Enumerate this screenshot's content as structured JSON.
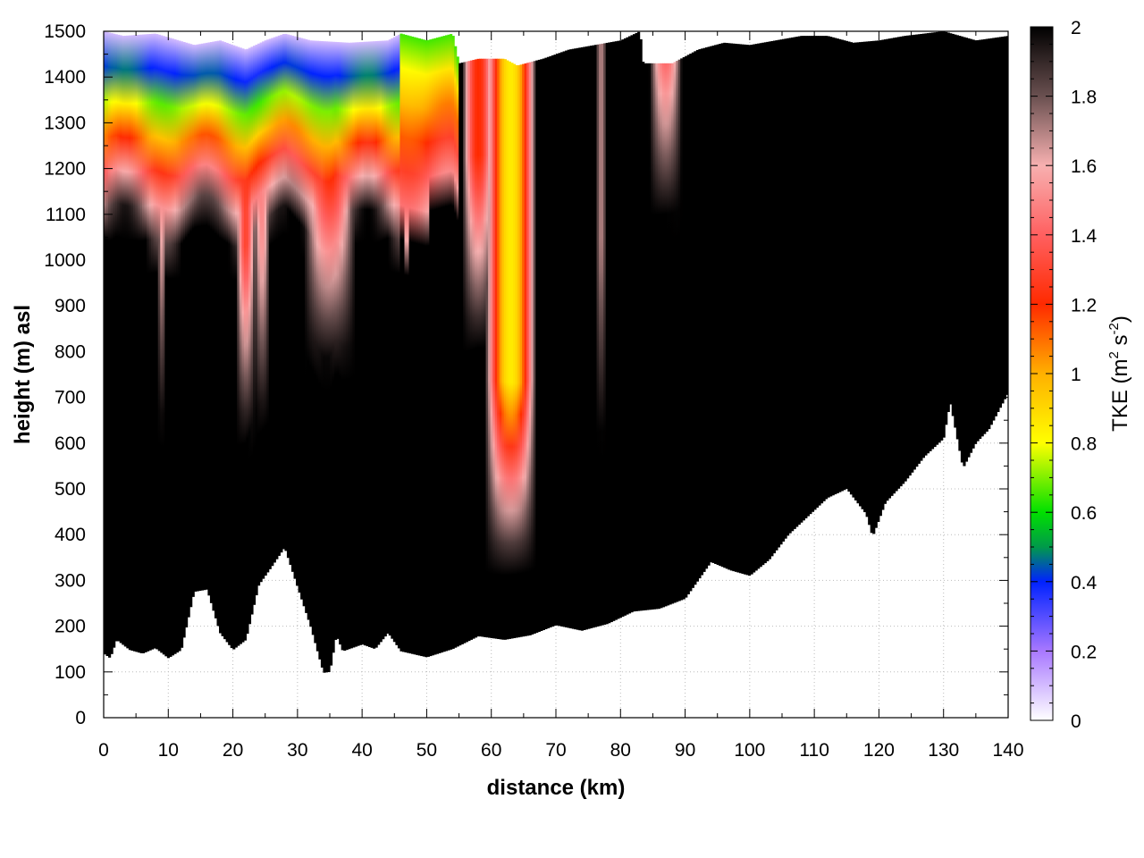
{
  "chart_data": {
    "type": "heatmap",
    "title": "",
    "xlabel": "distance (km)",
    "ylabel": "height (m) asl",
    "xlim": [
      0,
      140
    ],
    "ylim": [
      0,
      1500
    ],
    "x_ticks": [
      0,
      10,
      20,
      30,
      40,
      50,
      60,
      70,
      80,
      90,
      100,
      110,
      120,
      130,
      140
    ],
    "y_ticks": [
      0,
      100,
      200,
      300,
      400,
      500,
      600,
      700,
      800,
      900,
      1000,
      1100,
      1200,
      1300,
      1400,
      1500
    ],
    "grid": true,
    "colorbar": {
      "label_main": "TKE (m",
      "label_sup1": "2",
      "label_mid": " s",
      "label_sup2": "-2",
      "label_end": ")",
      "range": [
        0,
        2
      ],
      "ticks": [
        0,
        0.2,
        0.4,
        0.6,
        0.8,
        1,
        1.2,
        1.4,
        1.6,
        1.8,
        2
      ],
      "palette": [
        {
          "v": 0.0,
          "color": "#ffffff"
        },
        {
          "v": 0.2,
          "color": "#a878ff"
        },
        {
          "v": 0.4,
          "color": "#0022ff"
        },
        {
          "v": 0.5,
          "color": "#009a4a"
        },
        {
          "v": 0.6,
          "color": "#00e000"
        },
        {
          "v": 0.8,
          "color": "#ffff00"
        },
        {
          "v": 1.0,
          "color": "#ffb000"
        },
        {
          "v": 1.2,
          "color": "#ff2a00"
        },
        {
          "v": 1.4,
          "color": "#ff6060"
        },
        {
          "v": 1.6,
          "color": "#f7b0b0"
        },
        {
          "v": 1.8,
          "color": "#6a5050"
        },
        {
          "v": 2.0,
          "color": "#000000"
        }
      ]
    },
    "terrain_height": [
      [
        0,
        140
      ],
      [
        1,
        130
      ],
      [
        2,
        170
      ],
      [
        4,
        148
      ],
      [
        6,
        140
      ],
      [
        8,
        152
      ],
      [
        10,
        130
      ],
      [
        12,
        148
      ],
      [
        14,
        275
      ],
      [
        16,
        280
      ],
      [
        18,
        185
      ],
      [
        20,
        148
      ],
      [
        22,
        170
      ],
      [
        24,
        290
      ],
      [
        26,
        330
      ],
      [
        28,
        372
      ],
      [
        30,
        285
      ],
      [
        32,
        200
      ],
      [
        34,
        98
      ],
      [
        35,
        100
      ],
      [
        36,
        180
      ],
      [
        37,
        145
      ],
      [
        40,
        160
      ],
      [
        42,
        150
      ],
      [
        44,
        185
      ],
      [
        46,
        145
      ],
      [
        50,
        132
      ],
      [
        54,
        150
      ],
      [
        58,
        178
      ],
      [
        62,
        170
      ],
      [
        66,
        180
      ],
      [
        70,
        202
      ],
      [
        74,
        190
      ],
      [
        78,
        205
      ],
      [
        82,
        232
      ],
      [
        86,
        238
      ],
      [
        90,
        260
      ],
      [
        94,
        340
      ],
      [
        97,
        322
      ],
      [
        100,
        310
      ],
      [
        103,
        345
      ],
      [
        106,
        400
      ],
      [
        109,
        440
      ],
      [
        112,
        480
      ],
      [
        115,
        500
      ],
      [
        118,
        445
      ],
      [
        119,
        395
      ],
      [
        121,
        470
      ],
      [
        124,
        515
      ],
      [
        127,
        570
      ],
      [
        130,
        610
      ],
      [
        131,
        690
      ],
      [
        133,
        545
      ],
      [
        135,
        600
      ],
      [
        137,
        630
      ],
      [
        140,
        710
      ]
    ],
    "top_of_data_height": [
      [
        0,
        1500
      ],
      [
        3,
        1490
      ],
      [
        8,
        1495
      ],
      [
        14,
        1470
      ],
      [
        18,
        1480
      ],
      [
        22,
        1460
      ],
      [
        25,
        1480
      ],
      [
        28,
        1495
      ],
      [
        32,
        1480
      ],
      [
        38,
        1475
      ],
      [
        44,
        1480
      ],
      [
        46,
        1495
      ],
      [
        50,
        1480
      ],
      [
        54,
        1495
      ],
      [
        55,
        1430
      ],
      [
        58,
        1440
      ],
      [
        62,
        1440
      ],
      [
        64,
        1425
      ],
      [
        68,
        1440
      ],
      [
        72,
        1460
      ],
      [
        76,
        1470
      ],
      [
        80,
        1480
      ],
      [
        83,
        1500
      ],
      [
        83.5,
        1430
      ],
      [
        88,
        1430
      ],
      [
        92,
        1460
      ],
      [
        96,
        1475
      ],
      [
        100,
        1470
      ],
      [
        104,
        1480
      ],
      [
        108,
        1490
      ],
      [
        112,
        1490
      ],
      [
        116,
        1475
      ],
      [
        120,
        1480
      ],
      [
        124,
        1490
      ],
      [
        130,
        1500
      ],
      [
        135,
        1480
      ],
      [
        140,
        1490
      ]
    ],
    "tke_features": [
      {
        "kind": "band",
        "x_from": 0,
        "x_to": 46,
        "base_height": 1050,
        "max_tke": 2.0,
        "min_tke": 0.1
      },
      {
        "kind": "band",
        "x_from": 46,
        "x_to": 55,
        "base_height": 1100,
        "max_tke": 1.6,
        "min_tke": 0.65
      },
      {
        "kind": "plume",
        "x_center": 63,
        "half_width_km": 4,
        "bottom_height": 330,
        "min_tke": 0.85
      },
      {
        "kind": "plume",
        "x_center": 58,
        "half_width_km": 2.5,
        "bottom_height": 820,
        "min_tke": 1.2
      },
      {
        "kind": "plume",
        "x_center": 22,
        "half_width_km": 1.5,
        "bottom_height": 620,
        "min_tke": 1.3
      },
      {
        "kind": "plume",
        "x_center": 24.5,
        "half_width_km": 1.2,
        "bottom_height": 650,
        "min_tke": 1.5
      },
      {
        "kind": "plume",
        "x_center": 35,
        "half_width_km": 4,
        "bottom_height": 780,
        "min_tke": 1.2
      },
      {
        "kind": "plume",
        "x_center": 9,
        "half_width_km": 0.6,
        "bottom_height": 640,
        "min_tke": 1.6
      },
      {
        "kind": "plume",
        "x_center": 77,
        "half_width_km": 0.8,
        "bottom_height": 620,
        "min_tke": 1.7
      },
      {
        "kind": "plume",
        "x_center": 87,
        "half_width_km": 2.5,
        "bottom_height": 1100,
        "min_tke": 1.3
      }
    ]
  }
}
